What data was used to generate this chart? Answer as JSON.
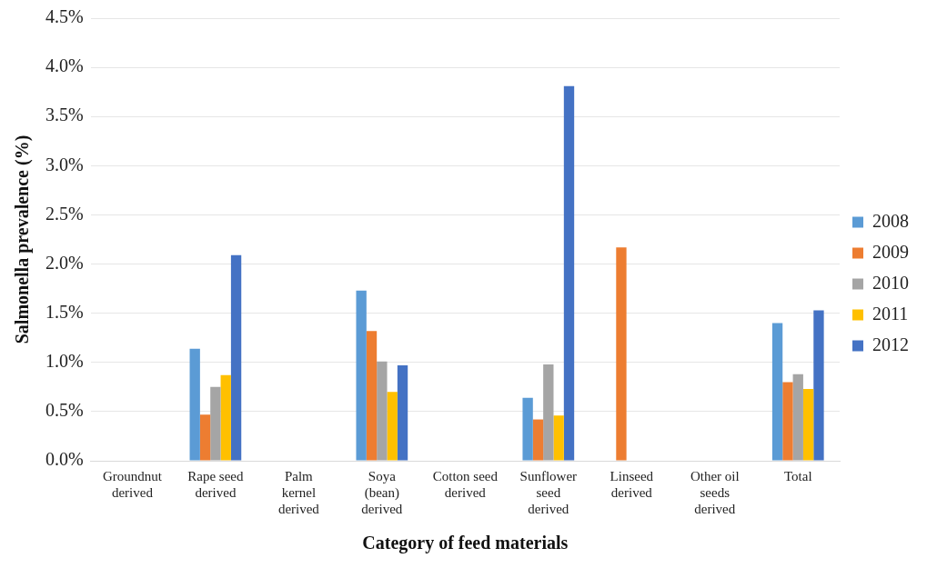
{
  "chart_data": {
    "type": "bar",
    "xlabel": "Category of feed materials",
    "ylabel": "Salmonella prevalence (%)",
    "categories": [
      "Groundnut derived",
      "Rape seed derived",
      "Palm kernel derived",
      "Soya (bean) derived",
      "Cotton seed derived",
      "Sunflower seed derived",
      "Linseed derived",
      "Other oil seeds derived",
      "Total"
    ],
    "series": [
      {
        "name": "2008",
        "color": "#5b9bd5",
        "values": [
          null,
          1.14,
          null,
          1.73,
          null,
          0.64,
          null,
          null,
          1.4
        ]
      },
      {
        "name": "2009",
        "color": "#ed7d31",
        "values": [
          null,
          0.47,
          null,
          1.32,
          null,
          0.42,
          2.17,
          null,
          0.8
        ]
      },
      {
        "name": "2010",
        "color": "#a5a5a5",
        "values": [
          null,
          0.75,
          null,
          1.01,
          null,
          0.98,
          null,
          null,
          0.88
        ]
      },
      {
        "name": "2011",
        "color": "#ffc000",
        "values": [
          null,
          0.87,
          null,
          0.7,
          null,
          0.46,
          null,
          null,
          0.73
        ]
      },
      {
        "name": "2012",
        "color": "#4472c4",
        "values": [
          null,
          2.09,
          null,
          0.97,
          null,
          3.81,
          null,
          null,
          1.53
        ]
      }
    ],
    "ylim": [
      0,
      4.5
    ],
    "yticks": [
      {
        "value": 0,
        "label": "0.0%"
      },
      {
        "value": 0.5,
        "label": "0.5%"
      },
      {
        "value": 1,
        "label": "1.0%"
      },
      {
        "value": 1.5,
        "label": "1.5%"
      },
      {
        "value": 2,
        "label": "2.0%"
      },
      {
        "value": 2.5,
        "label": "2.5%"
      },
      {
        "value": 3,
        "label": "3.0%"
      },
      {
        "value": 3.5,
        "label": "3.5%"
      },
      {
        "value": 4,
        "label": "4.0%"
      },
      {
        "value": 4.5,
        "label": "4.5%"
      }
    ],
    "grid": "y",
    "legend": "right"
  }
}
